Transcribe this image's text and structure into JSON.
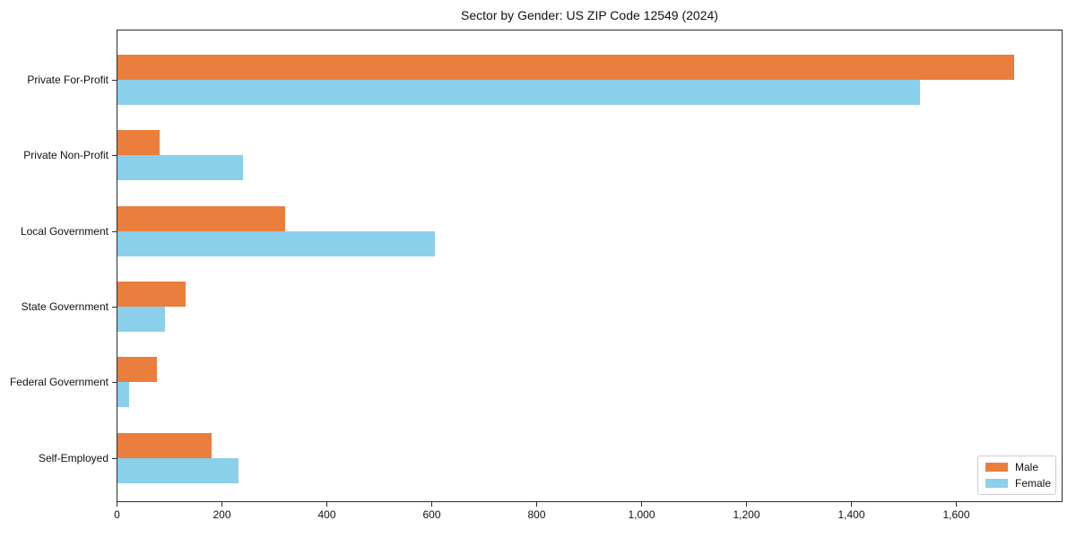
{
  "chart_data": {
    "type": "bar",
    "orientation": "horizontal",
    "title": "Sector by Gender: US ZIP Code 12549 (2024)",
    "categories": [
      "Private For-Profit",
      "Private Non-Profit",
      "Local Government",
      "State Government",
      "Federal Government",
      "Self-Employed"
    ],
    "series": [
      {
        "name": "Male",
        "color": "#e97e3d",
        "values": [
          1710,
          80,
          320,
          130,
          75,
          180
        ]
      },
      {
        "name": "Female",
        "color": "#8bd0ea",
        "values": [
          1530,
          240,
          605,
          90,
          22,
          230
        ]
      }
    ],
    "xlabel": "",
    "ylabel": "",
    "xlim": [
      0,
      1800
    ],
    "xticks": [
      0,
      200,
      400,
      600,
      800,
      1000,
      1200,
      1400,
      1600
    ],
    "xtick_labels": [
      "0",
      "200",
      "400",
      "600",
      "800",
      "1,000",
      "1,200",
      "1,400",
      "1,600"
    ],
    "grid": false,
    "legend": {
      "position": "lower right"
    }
  }
}
